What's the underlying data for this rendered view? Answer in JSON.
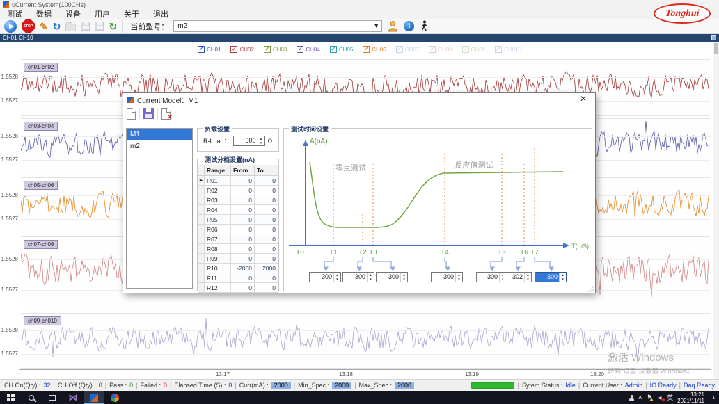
{
  "window": {
    "title": "uCurrent System(100CHs)"
  },
  "menu": {
    "items": [
      "测试",
      "数据",
      "设备",
      "用户",
      "关于",
      "退出"
    ]
  },
  "toolbar": {
    "stop_label": "STOP",
    "model_label": "当前型号：",
    "model_value": "m2"
  },
  "brand": {
    "text": "Tonghui"
  },
  "chart_strip": {
    "title": "CH01-CH10"
  },
  "icons": {
    "check": "✓",
    "close": "✕",
    "row_marker": "▶",
    "spin_up": "▲",
    "spin_down": "▼",
    "dropdown": "▾",
    "sync": "↻",
    "refresh": "↻",
    "edit": "✎",
    "info": "i",
    "sep": "|",
    "chevron_up": "∧",
    "flag": "⚑",
    "volume": "◄",
    "vs": "⋈"
  },
  "channels": [
    {
      "label": "CH01",
      "color": "#2b54c4",
      "muted": false
    },
    {
      "label": "CH02",
      "color": "#b04040",
      "muted": false
    },
    {
      "label": "CH03",
      "color": "#8a9a40",
      "muted": false
    },
    {
      "label": "CH04",
      "color": "#7050a0",
      "muted": false
    },
    {
      "label": "CH05",
      "color": "#30a0b8",
      "muted": false
    },
    {
      "label": "CH06",
      "color": "#e87818",
      "muted": false
    },
    {
      "label": "CH07",
      "color": "#9ab4d4",
      "muted": true
    },
    {
      "label": "CH08",
      "color": "#d4a0a0",
      "muted": true
    },
    {
      "label": "CH09",
      "color": "#b2c49a",
      "muted": true
    },
    {
      "label": "CH010",
      "color": "#b6aad2",
      "muted": true
    }
  ],
  "panels": [
    {
      "label": "ch01-ch02",
      "color": "#a03434",
      "yticks": [
        "1.5528",
        "1.5527"
      ]
    },
    {
      "label": "ch03-ch04",
      "color": "#5555a8",
      "yticks": [
        "1.5528",
        "1.5527"
      ]
    },
    {
      "label": "ch05-ch06",
      "color": "#e8881f",
      "yticks": [
        "1.5528",
        "1.5527"
      ]
    },
    {
      "label": "ch07-ch08",
      "color": "#cf8080",
      "yticks": [
        "1.5528",
        "1.5527"
      ]
    },
    {
      "label": "ch09-ch010",
      "color": "#a9a2cf",
      "yticks": [
        "1.5528",
        "1.5527"
      ]
    }
  ],
  "xticks": [
    "13:17",
    "13:18",
    "13:19",
    "13:20"
  ],
  "dialog": {
    "title": "Current Model：M1",
    "models": [
      "M1",
      "m2"
    ],
    "selected_model": "M1",
    "load_group": {
      "title": "负载设置",
      "label": "R-Load：",
      "value": "500",
      "unit": "Ω"
    },
    "range_group": {
      "title": "测试分档设置(nA)",
      "columns": [
        "Range",
        "From",
        "To"
      ],
      "rows": [
        [
          "R01",
          "0",
          "0"
        ],
        [
          "R02",
          "0",
          "0"
        ],
        [
          "R03",
          "0",
          "0"
        ],
        [
          "R04",
          "0",
          "0"
        ],
        [
          "R05",
          "0",
          "0"
        ],
        [
          "R06",
          "0",
          "0"
        ],
        [
          "R07",
          "0",
          "0"
        ],
        [
          "R08",
          "0",
          "0"
        ],
        [
          "R09",
          "0",
          "0"
        ],
        [
          "R10",
          "-2000",
          "2000"
        ],
        [
          "R11",
          "0",
          "0"
        ],
        [
          "R12",
          "0",
          "0"
        ]
      ]
    },
    "time_group": {
      "title": "测试时间设置",
      "y_axis_label": "A(nA)",
      "x_axis_label": "T(mS)",
      "zero_test_label": "零点测试",
      "response_test_label": "反应值测试",
      "t_labels": [
        "T0",
        "T1",
        "T2",
        "T3",
        "T4",
        "T5",
        "T6",
        "T7"
      ],
      "spin_values": [
        "300",
        "300",
        "300",
        "300",
        "300",
        "302",
        "300"
      ],
      "selected_spin_index": 6
    }
  },
  "status_bar": {
    "items": [
      {
        "label": "CH On(Qty) :",
        "value": "32",
        "style": "blue"
      },
      {
        "label": "CH Off (Qty) :",
        "value": "0",
        "style": "blue"
      },
      {
        "label": "Pass :",
        "value": "0",
        "style": "green"
      },
      {
        "label": "Failed :",
        "value": "0",
        "style": "red"
      },
      {
        "label": "Elapsed Time (S) :",
        "value": "0",
        "style": "blue"
      },
      {
        "label": "Curr(mA) :",
        "value": "2000",
        "style": "chip"
      },
      {
        "label": "Min_Spec :",
        "value": "2000",
        "style": "chip"
      },
      {
        "label": "Max_Spec :",
        "value": "2000",
        "style": "chip"
      }
    ],
    "system_status_label": "Sytem Status :",
    "system_status": "Idle",
    "current_user_label": "Current User :",
    "current_user": "Admin",
    "io_status": "IO Ready",
    "daq_status": "Daq Ready"
  },
  "taskbar": {
    "ime": "英",
    "time": "13:21",
    "date": "2021/11/11",
    "badge": "1"
  },
  "watermark": {
    "line1": "激活 Windows",
    "line2": "转到“设置”以激活 Windows。"
  }
}
